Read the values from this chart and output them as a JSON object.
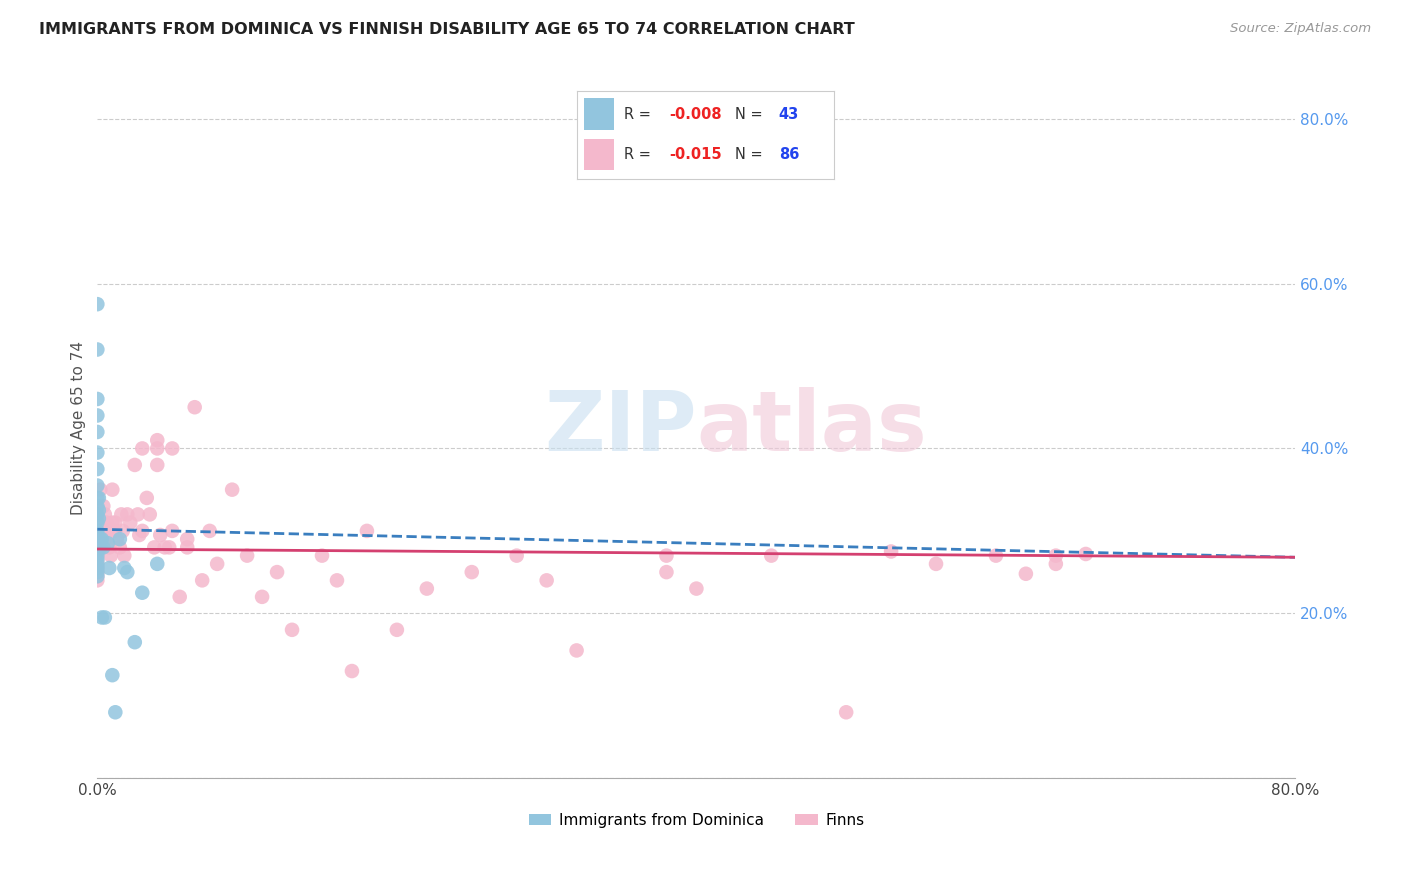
{
  "title": "IMMIGRANTS FROM DOMINICA VS FINNISH DISABILITY AGE 65 TO 74 CORRELATION CHART",
  "source": "Source: ZipAtlas.com",
  "ylabel": "Disability Age 65 to 74",
  "xlim": [
    0.0,
    0.8
  ],
  "ylim": [
    0.0,
    0.85
  ],
  "x_ticks": [
    0.0,
    0.1,
    0.2,
    0.3,
    0.4,
    0.5,
    0.6,
    0.7,
    0.8
  ],
  "y_ticks": [
    0.0,
    0.2,
    0.4,
    0.6,
    0.8
  ],
  "blue_color": "#92c5de",
  "pink_color": "#f4b8cc",
  "blue_line_color": "#3a7ebf",
  "pink_line_color": "#d44070",
  "grid_color": "#cccccc",
  "r1": "-0.008",
  "n1": "43",
  "r2": "-0.015",
  "n2": "86",
  "blue_x": [
    0.0,
    0.0,
    0.0,
    0.0,
    0.0,
    0.0,
    0.0,
    0.0,
    0.0,
    0.0,
    0.0,
    0.0,
    0.0,
    0.0,
    0.0,
    0.0,
    0.0,
    0.0,
    0.0,
    0.0,
    0.0,
    0.0,
    0.0,
    0.0,
    0.001,
    0.001,
    0.001,
    0.002,
    0.002,
    0.003,
    0.003,
    0.004,
    0.005,
    0.007,
    0.008,
    0.01,
    0.012,
    0.015,
    0.018,
    0.02,
    0.025,
    0.03,
    0.04
  ],
  "blue_y": [
    0.575,
    0.52,
    0.46,
    0.44,
    0.42,
    0.395,
    0.375,
    0.355,
    0.34,
    0.33,
    0.32,
    0.31,
    0.3,
    0.295,
    0.29,
    0.285,
    0.28,
    0.275,
    0.27,
    0.265,
    0.26,
    0.255,
    0.25,
    0.245,
    0.34,
    0.325,
    0.315,
    0.29,
    0.28,
    0.29,
    0.195,
    0.28,
    0.195,
    0.285,
    0.255,
    0.125,
    0.08,
    0.29,
    0.255,
    0.25,
    0.165,
    0.225,
    0.26
  ],
  "pink_x": [
    0.0,
    0.0,
    0.0,
    0.0,
    0.0,
    0.0,
    0.0,
    0.0,
    0.0,
    0.0,
    0.0,
    0.0,
    0.0,
    0.001,
    0.001,
    0.002,
    0.002,
    0.003,
    0.004,
    0.005,
    0.005,
    0.006,
    0.007,
    0.008,
    0.009,
    0.01,
    0.01,
    0.011,
    0.012,
    0.013,
    0.015,
    0.016,
    0.017,
    0.018,
    0.02,
    0.022,
    0.025,
    0.027,
    0.028,
    0.03,
    0.033,
    0.035,
    0.038,
    0.04,
    0.04,
    0.042,
    0.045,
    0.048,
    0.05,
    0.055,
    0.06,
    0.065,
    0.07,
    0.075,
    0.08,
    0.09,
    0.1,
    0.11,
    0.12,
    0.13,
    0.15,
    0.16,
    0.17,
    0.18,
    0.2,
    0.22,
    0.25,
    0.28,
    0.3,
    0.32,
    0.38,
    0.4,
    0.45,
    0.5,
    0.53,
    0.56,
    0.6,
    0.62,
    0.64,
    0.66,
    0.03,
    0.04,
    0.05,
    0.06,
    0.38,
    0.64
  ],
  "pink_y": [
    0.3,
    0.295,
    0.29,
    0.285,
    0.28,
    0.275,
    0.27,
    0.265,
    0.26,
    0.255,
    0.25,
    0.245,
    0.24,
    0.31,
    0.29,
    0.35,
    0.3,
    0.28,
    0.33,
    0.32,
    0.29,
    0.31,
    0.3,
    0.28,
    0.27,
    0.35,
    0.31,
    0.3,
    0.31,
    0.29,
    0.28,
    0.32,
    0.3,
    0.27,
    0.32,
    0.31,
    0.38,
    0.32,
    0.295,
    0.3,
    0.34,
    0.32,
    0.28,
    0.41,
    0.38,
    0.295,
    0.28,
    0.28,
    0.3,
    0.22,
    0.28,
    0.45,
    0.24,
    0.3,
    0.26,
    0.35,
    0.27,
    0.22,
    0.25,
    0.18,
    0.27,
    0.24,
    0.13,
    0.3,
    0.18,
    0.23,
    0.25,
    0.27,
    0.24,
    0.155,
    0.25,
    0.23,
    0.27,
    0.08,
    0.275,
    0.26,
    0.27,
    0.248,
    0.26,
    0.272,
    0.4,
    0.4,
    0.4,
    0.29,
    0.27,
    0.27
  ]
}
